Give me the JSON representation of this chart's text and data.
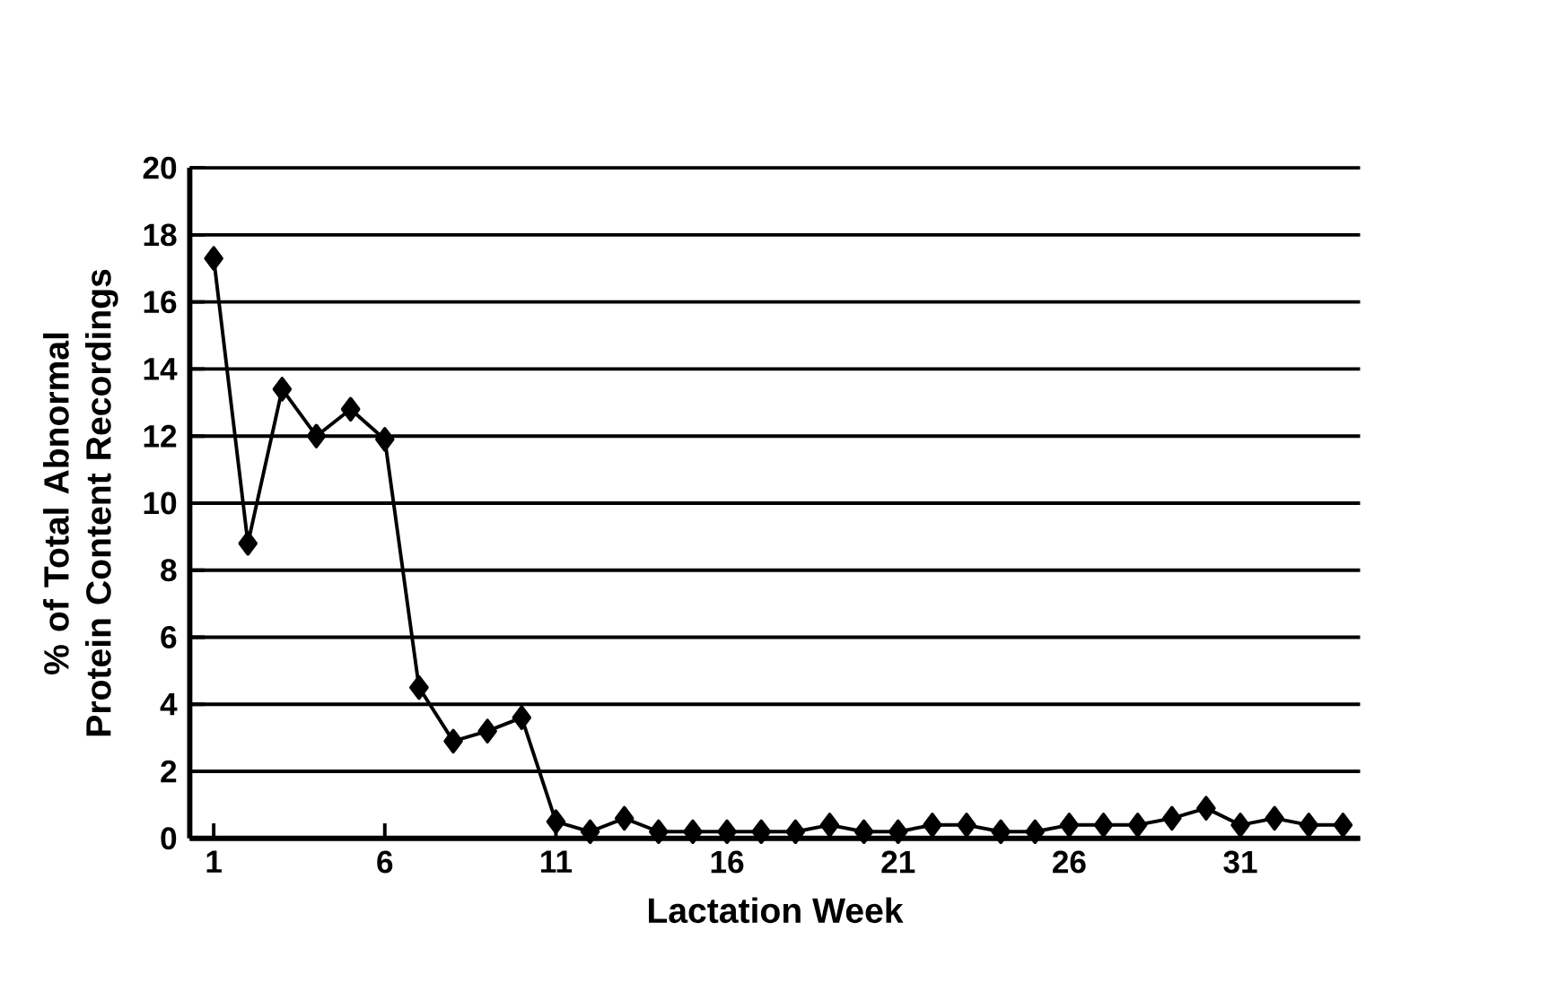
{
  "chart_data": {
    "type": "line",
    "xlabel": "Lactation Week",
    "ylabel": "% of Total Abnormal Protein Content Recordings",
    "x": [
      1,
      2,
      3,
      4,
      5,
      6,
      7,
      8,
      9,
      10,
      11,
      12,
      13,
      14,
      15,
      16,
      17,
      18,
      19,
      20,
      21,
      22,
      23,
      24,
      25,
      26,
      27,
      28,
      29,
      30,
      31,
      32,
      33,
      34
    ],
    "values": [
      17.3,
      8.8,
      13.4,
      12.0,
      12.8,
      11.9,
      4.5,
      2.9,
      3.2,
      3.6,
      0.5,
      0.2,
      0.6,
      0.2,
      0.2,
      0.2,
      0.2,
      0.2,
      0.4,
      0.2,
      0.2,
      0.4,
      0.4,
      0.2,
      0.2,
      0.4,
      0.4,
      0.4,
      0.6,
      0.9,
      0.4,
      0.6,
      0.4,
      0.4
    ],
    "color": "#000000",
    "marker": "diamond",
    "grid": "y",
    "xlim": [
      0.3,
      34.5
    ],
    "xticks": [
      1,
      6,
      11,
      16,
      21,
      26,
      31
    ],
    "ylim": [
      0,
      20
    ],
    "yticks": [
      0,
      2,
      4,
      6,
      8,
      10,
      12,
      14,
      16,
      18,
      20
    ]
  }
}
